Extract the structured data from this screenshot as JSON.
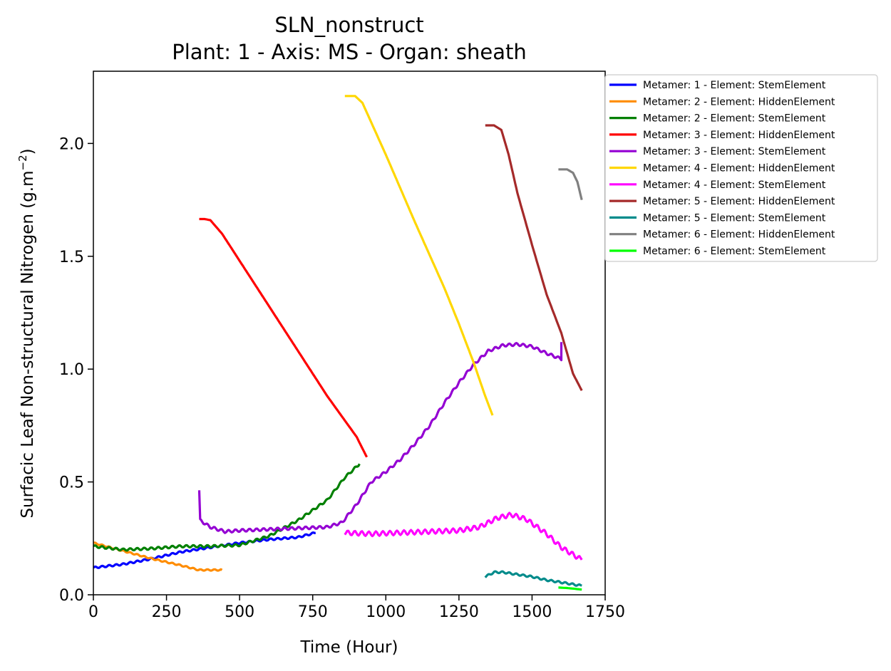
{
  "chart_data": {
    "type": "line",
    "title": "SLN_nonstruct",
    "subtitle": "Plant: 1 - Axis: MS - Organ: sheath",
    "xlabel": "Time (Hour)",
    "ylabel": "Surfacic Leaf Non-structural Nitrogen (g.m",
    "ylabel_sup": "−2",
    "ylabel_end": ")",
    "xlim": [
      0,
      1750
    ],
    "ylim": [
      0,
      2.32
    ],
    "xticks": [
      0,
      250,
      500,
      750,
      1000,
      1250,
      1500,
      1750
    ],
    "xtick_labels": [
      "0",
      "250",
      "500",
      "750",
      "1000",
      "1250",
      "1500",
      "1750"
    ],
    "yticks": [
      0.0,
      0.5,
      1.0,
      1.5,
      2.0
    ],
    "ytick_labels": [
      "0.0",
      "0.5",
      "1.0",
      "1.5",
      "2.0"
    ],
    "grid": false,
    "legend_position": "outside-right",
    "series": [
      {
        "name": "Metamer: 1 - Element: StemElement",
        "color": "#0000ff",
        "wiggle": 0.004,
        "points": [
          [
            0,
            0.12
          ],
          [
            100,
            0.135
          ],
          [
            200,
            0.16
          ],
          [
            300,
            0.19
          ],
          [
            400,
            0.21
          ],
          [
            500,
            0.23
          ],
          [
            600,
            0.245
          ],
          [
            700,
            0.255
          ],
          [
            760,
            0.275
          ]
        ]
      },
      {
        "name": "Metamer: 2 - Element: HiddenElement",
        "color": "#ff8c00",
        "wiggle": 0.003,
        "points": [
          [
            0,
            0.23
          ],
          [
            100,
            0.195
          ],
          [
            200,
            0.16
          ],
          [
            300,
            0.13
          ],
          [
            360,
            0.11
          ],
          [
            440,
            0.11
          ]
        ]
      },
      {
        "name": "Metamer: 2 - Element: StemElement",
        "color": "#008000",
        "wiggle": 0.005,
        "points": [
          [
            0,
            0.215
          ],
          [
            100,
            0.2
          ],
          [
            200,
            0.205
          ],
          [
            300,
            0.215
          ],
          [
            400,
            0.215
          ],
          [
            500,
            0.22
          ],
          [
            600,
            0.26
          ],
          [
            700,
            0.33
          ],
          [
            800,
            0.42
          ],
          [
            860,
            0.52
          ],
          [
            910,
            0.58
          ]
        ]
      },
      {
        "name": "Metamer: 3 - Element: HiddenElement",
        "color": "#ff0000",
        "wiggle": 0,
        "points": [
          [
            362,
            1.665
          ],
          [
            380,
            1.665
          ],
          [
            400,
            1.66
          ],
          [
            440,
            1.6
          ],
          [
            500,
            1.48
          ],
          [
            600,
            1.28
          ],
          [
            700,
            1.08
          ],
          [
            800,
            0.88
          ],
          [
            900,
            0.7
          ],
          [
            935,
            0.61
          ]
        ]
      },
      {
        "name": "Metamer: 3 - Element: StemElement",
        "color": "#9400d3",
        "wiggle": 0.006,
        "points": [
          [
            362,
            0.46
          ],
          [
            365,
            0.33
          ],
          [
            400,
            0.3
          ],
          [
            450,
            0.28
          ],
          [
            500,
            0.285
          ],
          [
            600,
            0.29
          ],
          [
            700,
            0.295
          ],
          [
            800,
            0.3
          ],
          [
            850,
            0.32
          ],
          [
            900,
            0.4
          ],
          [
            950,
            0.5
          ],
          [
            1000,
            0.545
          ],
          [
            1050,
            0.6
          ],
          [
            1100,
            0.67
          ],
          [
            1150,
            0.75
          ],
          [
            1200,
            0.85
          ],
          [
            1250,
            0.94
          ],
          [
            1300,
            1.02
          ],
          [
            1350,
            1.08
          ],
          [
            1400,
            1.105
          ],
          [
            1450,
            1.11
          ],
          [
            1500,
            1.1
          ],
          [
            1550,
            1.07
          ],
          [
            1600,
            1.045
          ],
          [
            1600,
            1.12
          ]
        ]
      },
      {
        "name": "Metamer: 4 - Element: HiddenElement",
        "color": "#ffd700",
        "wiggle": 0,
        "points": [
          [
            860,
            2.21
          ],
          [
            895,
            2.21
          ],
          [
            920,
            2.18
          ],
          [
            1000,
            1.95
          ],
          [
            1100,
            1.65
          ],
          [
            1200,
            1.36
          ],
          [
            1250,
            1.2
          ],
          [
            1300,
            1.03
          ],
          [
            1340,
            0.88
          ],
          [
            1365,
            0.795
          ]
        ]
      },
      {
        "name": "Metamer: 4 - Element: StemElement",
        "color": "#ff00ff",
        "wiggle": 0.01,
        "points": [
          [
            860,
            0.275
          ],
          [
            950,
            0.27
          ],
          [
            1050,
            0.275
          ],
          [
            1150,
            0.28
          ],
          [
            1250,
            0.285
          ],
          [
            1320,
            0.3
          ],
          [
            1380,
            0.34
          ],
          [
            1430,
            0.355
          ],
          [
            1480,
            0.335
          ],
          [
            1550,
            0.27
          ],
          [
            1600,
            0.21
          ],
          [
            1670,
            0.155
          ]
        ]
      },
      {
        "name": "Metamer: 5 - Element: HiddenElement",
        "color": "#a52a2a",
        "wiggle": 0,
        "points": [
          [
            1340,
            2.08
          ],
          [
            1370,
            2.08
          ],
          [
            1395,
            2.06
          ],
          [
            1420,
            1.95
          ],
          [
            1450,
            1.78
          ],
          [
            1500,
            1.55
          ],
          [
            1550,
            1.33
          ],
          [
            1600,
            1.16
          ],
          [
            1640,
            0.98
          ],
          [
            1670,
            0.905
          ]
        ]
      },
      {
        "name": "Metamer: 5 - Element: StemElement",
        "color": "#008b8b",
        "wiggle": 0.004,
        "points": [
          [
            1340,
            0.08
          ],
          [
            1370,
            0.1
          ],
          [
            1400,
            0.1
          ],
          [
            1450,
            0.09
          ],
          [
            1500,
            0.08
          ],
          [
            1550,
            0.065
          ],
          [
            1600,
            0.055
          ],
          [
            1670,
            0.04
          ]
        ]
      },
      {
        "name": "Metamer: 6 - Element: HiddenElement",
        "color": "#808080",
        "wiggle": 0,
        "points": [
          [
            1590,
            1.885
          ],
          [
            1620,
            1.885
          ],
          [
            1640,
            1.87
          ],
          [
            1655,
            1.83
          ],
          [
            1670,
            1.75
          ]
        ]
      },
      {
        "name": "Metamer: 6 - Element: StemElement",
        "color": "#00ff00",
        "wiggle": 0,
        "points": [
          [
            1590,
            0.032
          ],
          [
            1620,
            0.03
          ],
          [
            1650,
            0.026
          ],
          [
            1670,
            0.023
          ]
        ]
      }
    ]
  }
}
